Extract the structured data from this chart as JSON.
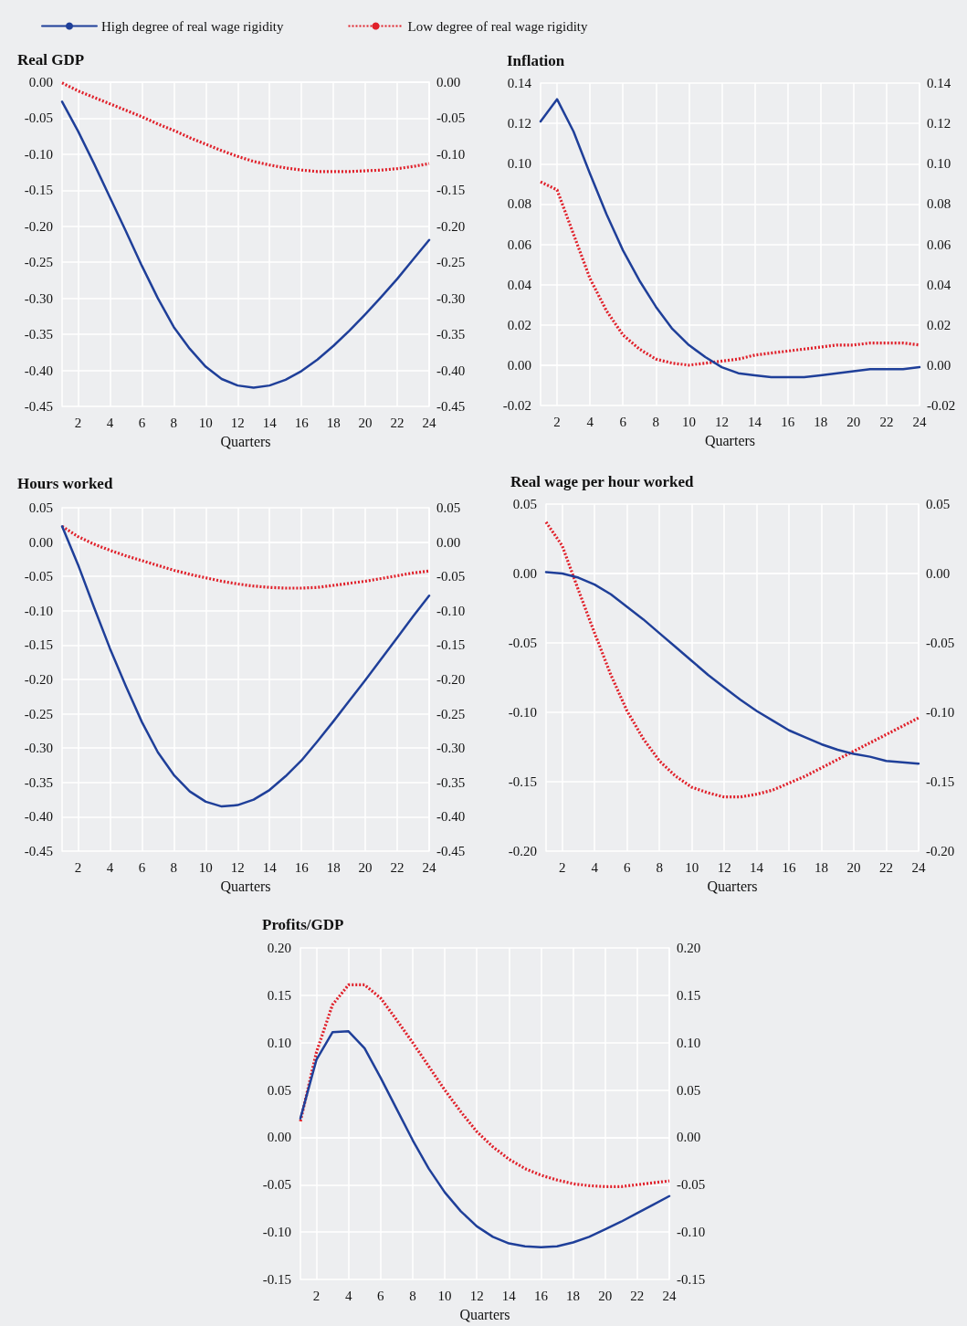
{
  "chart_data": [
    {
      "type": "line",
      "title": "Real GDP",
      "xlabel": "Quarters",
      "legend": "top",
      "grid": true,
      "marker": "none",
      "x": [
        1,
        2,
        3,
        4,
        5,
        6,
        7,
        8,
        9,
        10,
        11,
        12,
        13,
        14,
        15,
        16,
        17,
        18,
        19,
        20,
        21,
        22,
        23,
        24
      ],
      "xlim": [
        1,
        24
      ],
      "xticks": [
        2,
        4,
        6,
        8,
        10,
        12,
        14,
        16,
        18,
        20,
        22,
        24
      ],
      "ylim": [
        -0.45,
        0
      ],
      "yticks": [
        {
          "value": 0,
          "label": "0.00"
        },
        -0.05,
        {
          "value": -0.1,
          "label": "-0.10"
        },
        -0.15,
        {
          "value": -0.2,
          "label": "-0.20"
        },
        -0.25,
        {
          "value": -0.3,
          "label": "-0.30"
        },
        -0.35,
        {
          "value": -0.4,
          "label": "-0.40"
        },
        -0.45
      ],
      "y2lim": [
        -0.45,
        0
      ],
      "y2ticks": [
        {
          "value": 0,
          "label": "0.00"
        },
        -0.05,
        {
          "value": -0.1,
          "label": "-0.10"
        },
        -0.15,
        {
          "value": -0.2,
          "label": "-0.20"
        },
        -0.25,
        {
          "value": -0.3,
          "label": "-0.30"
        },
        -0.35,
        {
          "value": -0.4,
          "label": "-0.40"
        },
        -0.45
      ],
      "series": [
        {
          "name": "High degree of real wage rigidity",
          "color": "#1f3f99",
          "line_style": "solid",
          "values": [
            -0.027,
            -0.068,
            -0.113,
            -0.16,
            -0.207,
            -0.255,
            -0.3,
            -0.34,
            -0.37,
            -0.395,
            -0.412,
            -0.421,
            -0.424,
            -0.421,
            -0.413,
            -0.401,
            -0.385,
            -0.366,
            -0.345,
            -0.322,
            -0.298,
            -0.273,
            -0.246,
            -0.219
          ]
        },
        {
          "name": "Low degree of real wage rigidity",
          "color": "#e0202a",
          "line_style": "dotted",
          "values": [
            -0.001,
            -0.012,
            -0.021,
            -0.03,
            -0.039,
            -0.048,
            -0.058,
            -0.067,
            -0.077,
            -0.086,
            -0.095,
            -0.103,
            -0.11,
            -0.115,
            -0.119,
            -0.122,
            -0.124,
            -0.124,
            -0.124,
            -0.123,
            -0.122,
            -0.12,
            -0.117,
            -0.113
          ]
        }
      ]
    },
    {
      "type": "line",
      "title": "Inflation",
      "xlabel": "Quarters",
      "grid": true,
      "marker": "none",
      "x": [
        1,
        2,
        3,
        4,
        5,
        6,
        7,
        8,
        9,
        10,
        11,
        12,
        13,
        14,
        15,
        16,
        17,
        18,
        19,
        20,
        21,
        22,
        23,
        24
      ],
      "xlim": [
        1,
        24
      ],
      "xticks": [
        2,
        4,
        6,
        8,
        10,
        12,
        14,
        16,
        18,
        20,
        22,
        24
      ],
      "ylim": [
        -0.02,
        0.14
      ],
      "yticks": [
        -0.02,
        {
          "value": 0,
          "label": "0.00"
        },
        0.02,
        0.04,
        0.06,
        0.08,
        {
          "value": 0.1,
          "label": "0.10"
        },
        {
          "value": 0.12,
          "label": "0.12"
        },
        0.14
      ],
      "y2lim": [
        -0.02,
        0.14
      ],
      "y2ticks": [
        -0.02,
        {
          "value": 0,
          "label": "0.00"
        },
        0.02,
        0.04,
        0.06,
        0.08,
        {
          "value": 0.1,
          "label": "0.10"
        },
        {
          "value": 0.12,
          "label": "0.12"
        },
        0.14
      ],
      "series": [
        {
          "color": "#1f3f99",
          "line_style": "solid",
          "values": [
            0.121,
            0.132,
            0.116,
            0.095,
            0.075,
            0.057,
            0.042,
            0.029,
            0.018,
            0.01,
            0.004,
            -0.001,
            -0.004,
            -0.005,
            -0.006,
            -0.006,
            -0.006,
            -0.005,
            -0.004,
            -0.003,
            -0.002,
            -0.002,
            -0.002,
            -0.001
          ]
        },
        {
          "color": "#e0202a",
          "line_style": "dotted",
          "values": [
            0.091,
            0.087,
            0.065,
            0.043,
            0.027,
            0.015,
            0.008,
            0.003,
            0.001,
            0.0,
            0.001,
            0.002,
            0.003,
            0.005,
            0.006,
            0.007,
            0.008,
            0.009,
            0.01,
            0.01,
            0.011,
            0.011,
            0.011,
            0.01
          ]
        }
      ]
    },
    {
      "type": "line",
      "title": "Hours worked",
      "xlabel": "Quarters",
      "grid": true,
      "marker": "none",
      "x": [
        1,
        2,
        3,
        4,
        5,
        6,
        7,
        8,
        9,
        10,
        11,
        12,
        13,
        14,
        15,
        16,
        17,
        18,
        19,
        20,
        21,
        22,
        23,
        24
      ],
      "xlim": [
        1,
        24
      ],
      "xticks": [
        2,
        4,
        6,
        8,
        10,
        12,
        14,
        16,
        18,
        20,
        22,
        24
      ],
      "ylim": [
        -0.45,
        0.05
      ],
      "yticks": [
        -0.45,
        {
          "value": -0.4,
          "label": "-0.40"
        },
        -0.35,
        {
          "value": -0.3,
          "label": "-0.30"
        },
        -0.25,
        {
          "value": -0.2,
          "label": "-0.20"
        },
        -0.15,
        {
          "value": -0.1,
          "label": "-0.10"
        },
        -0.05,
        {
          "value": 0,
          "label": "0.00"
        },
        0.05
      ],
      "y2lim": [
        -0.45,
        0.05
      ],
      "y2ticks": [
        -0.45,
        {
          "value": -0.4,
          "label": "-0.40"
        },
        -0.35,
        {
          "value": -0.3,
          "label": "-0.30"
        },
        -0.25,
        {
          "value": -0.2,
          "label": "-0.20"
        },
        -0.15,
        {
          "value": -0.1,
          "label": "-0.10"
        },
        -0.05,
        {
          "value": 0,
          "label": "0.00"
        },
        0.05
      ],
      "series": [
        {
          "color": "#1f3f99",
          "line_style": "solid",
          "values": [
            0.023,
            -0.033,
            -0.095,
            -0.155,
            -0.21,
            -0.262,
            -0.306,
            -0.339,
            -0.363,
            -0.378,
            -0.385,
            -0.383,
            -0.375,
            -0.361,
            -0.341,
            -0.318,
            -0.29,
            -0.261,
            -0.231,
            -0.201,
            -0.17,
            -0.139,
            -0.108,
            -0.078
          ]
        },
        {
          "color": "#e0202a",
          "line_style": "dotted",
          "values": [
            0.023,
            0.008,
            -0.003,
            -0.012,
            -0.02,
            -0.027,
            -0.034,
            -0.041,
            -0.047,
            -0.052,
            -0.057,
            -0.061,
            -0.064,
            -0.066,
            -0.067,
            -0.067,
            -0.066,
            -0.063,
            -0.06,
            -0.057,
            -0.053,
            -0.049,
            -0.045,
            -0.042
          ]
        }
      ]
    },
    {
      "type": "line",
      "title": "Real wage per hour worked",
      "xlabel": "Quarters",
      "grid": true,
      "marker": "none",
      "x": [
        1,
        2,
        3,
        4,
        5,
        6,
        7,
        8,
        9,
        10,
        11,
        12,
        13,
        14,
        15,
        16,
        17,
        18,
        19,
        20,
        21,
        22,
        23,
        24
      ],
      "xlim": [
        1,
        24
      ],
      "xticks": [
        2,
        4,
        6,
        8,
        10,
        12,
        14,
        16,
        18,
        20,
        22,
        24
      ],
      "ylim": [
        -0.2,
        0.05
      ],
      "yticks": [
        {
          "value": -0.2,
          "label": "-0.20"
        },
        -0.15,
        {
          "value": -0.1,
          "label": "-0.10"
        },
        -0.05,
        {
          "value": 0,
          "label": "0.00"
        },
        0.05
      ],
      "y2lim": [
        -0.2,
        0.05
      ],
      "y2ticks": [
        {
          "value": -0.2,
          "label": "-0.20"
        },
        -0.15,
        {
          "value": -0.1,
          "label": "-0.10"
        },
        -0.05,
        {
          "value": 0,
          "label": "0.00"
        },
        0.05
      ],
      "series": [
        {
          "color": "#1f3f99",
          "line_style": "solid",
          "values": [
            0.001,
            0.0,
            -0.003,
            -0.008,
            -0.015,
            -0.024,
            -0.033,
            -0.043,
            -0.053,
            -0.063,
            -0.073,
            -0.082,
            -0.091,
            -0.099,
            -0.106,
            -0.113,
            -0.118,
            -0.123,
            -0.127,
            -0.13,
            -0.132,
            -0.135,
            -0.136,
            -0.137
          ]
        },
        {
          "color": "#e0202a",
          "line_style": "dotted",
          "values": [
            0.037,
            0.02,
            -0.012,
            -0.043,
            -0.073,
            -0.099,
            -0.119,
            -0.135,
            -0.146,
            -0.154,
            -0.158,
            -0.161,
            -0.161,
            -0.159,
            -0.156,
            -0.151,
            -0.146,
            -0.14,
            -0.134,
            -0.128,
            -0.122,
            -0.116,
            -0.11,
            -0.104
          ]
        }
      ]
    },
    {
      "type": "line",
      "title": "Profits/GDP",
      "xlabel": "Quarters",
      "grid": true,
      "marker": "none",
      "x": [
        1,
        2,
        3,
        4,
        5,
        6,
        7,
        8,
        9,
        10,
        11,
        12,
        13,
        14,
        15,
        16,
        17,
        18,
        19,
        20,
        21,
        22,
        23,
        24
      ],
      "xlim": [
        1,
        24
      ],
      "xticks": [
        2,
        4,
        6,
        8,
        10,
        12,
        14,
        16,
        18,
        20,
        22,
        24
      ],
      "ylim": [
        -0.15,
        0.2
      ],
      "yticks": [
        -0.15,
        {
          "value": -0.1,
          "label": "-0.10"
        },
        -0.05,
        {
          "value": 0,
          "label": "0.00"
        },
        0.05,
        {
          "value": 0.1,
          "label": "0.10"
        },
        0.15,
        {
          "value": 0.2,
          "label": "0.20"
        }
      ],
      "y2lim": [
        -0.15,
        0.2
      ],
      "y2ticks": [
        -0.15,
        {
          "value": -0.1,
          "label": "-0.10"
        },
        -0.05,
        {
          "value": 0,
          "label": "0.00"
        },
        0.05,
        {
          "value": 0.1,
          "label": "0.10"
        },
        0.15,
        {
          "value": 0.2,
          "label": "0.20"
        }
      ],
      "series": [
        {
          "color": "#1f3f99",
          "line_style": "solid",
          "values": [
            0.02,
            0.082,
            0.111,
            0.112,
            0.094,
            0.063,
            0.03,
            -0.003,
            -0.033,
            -0.058,
            -0.078,
            -0.094,
            -0.105,
            -0.112,
            -0.115,
            -0.116,
            -0.115,
            -0.111,
            -0.105,
            -0.097,
            -0.089,
            -0.08,
            -0.071,
            -0.062
          ]
        },
        {
          "color": "#e0202a",
          "line_style": "dotted",
          "values": [
            0.017,
            0.09,
            0.14,
            0.161,
            0.161,
            0.147,
            0.124,
            0.1,
            0.075,
            0.05,
            0.027,
            0.006,
            -0.01,
            -0.023,
            -0.033,
            -0.04,
            -0.045,
            -0.049,
            -0.051,
            -0.052,
            -0.052,
            -0.05,
            -0.048,
            -0.046
          ]
        }
      ]
    }
  ]
}
